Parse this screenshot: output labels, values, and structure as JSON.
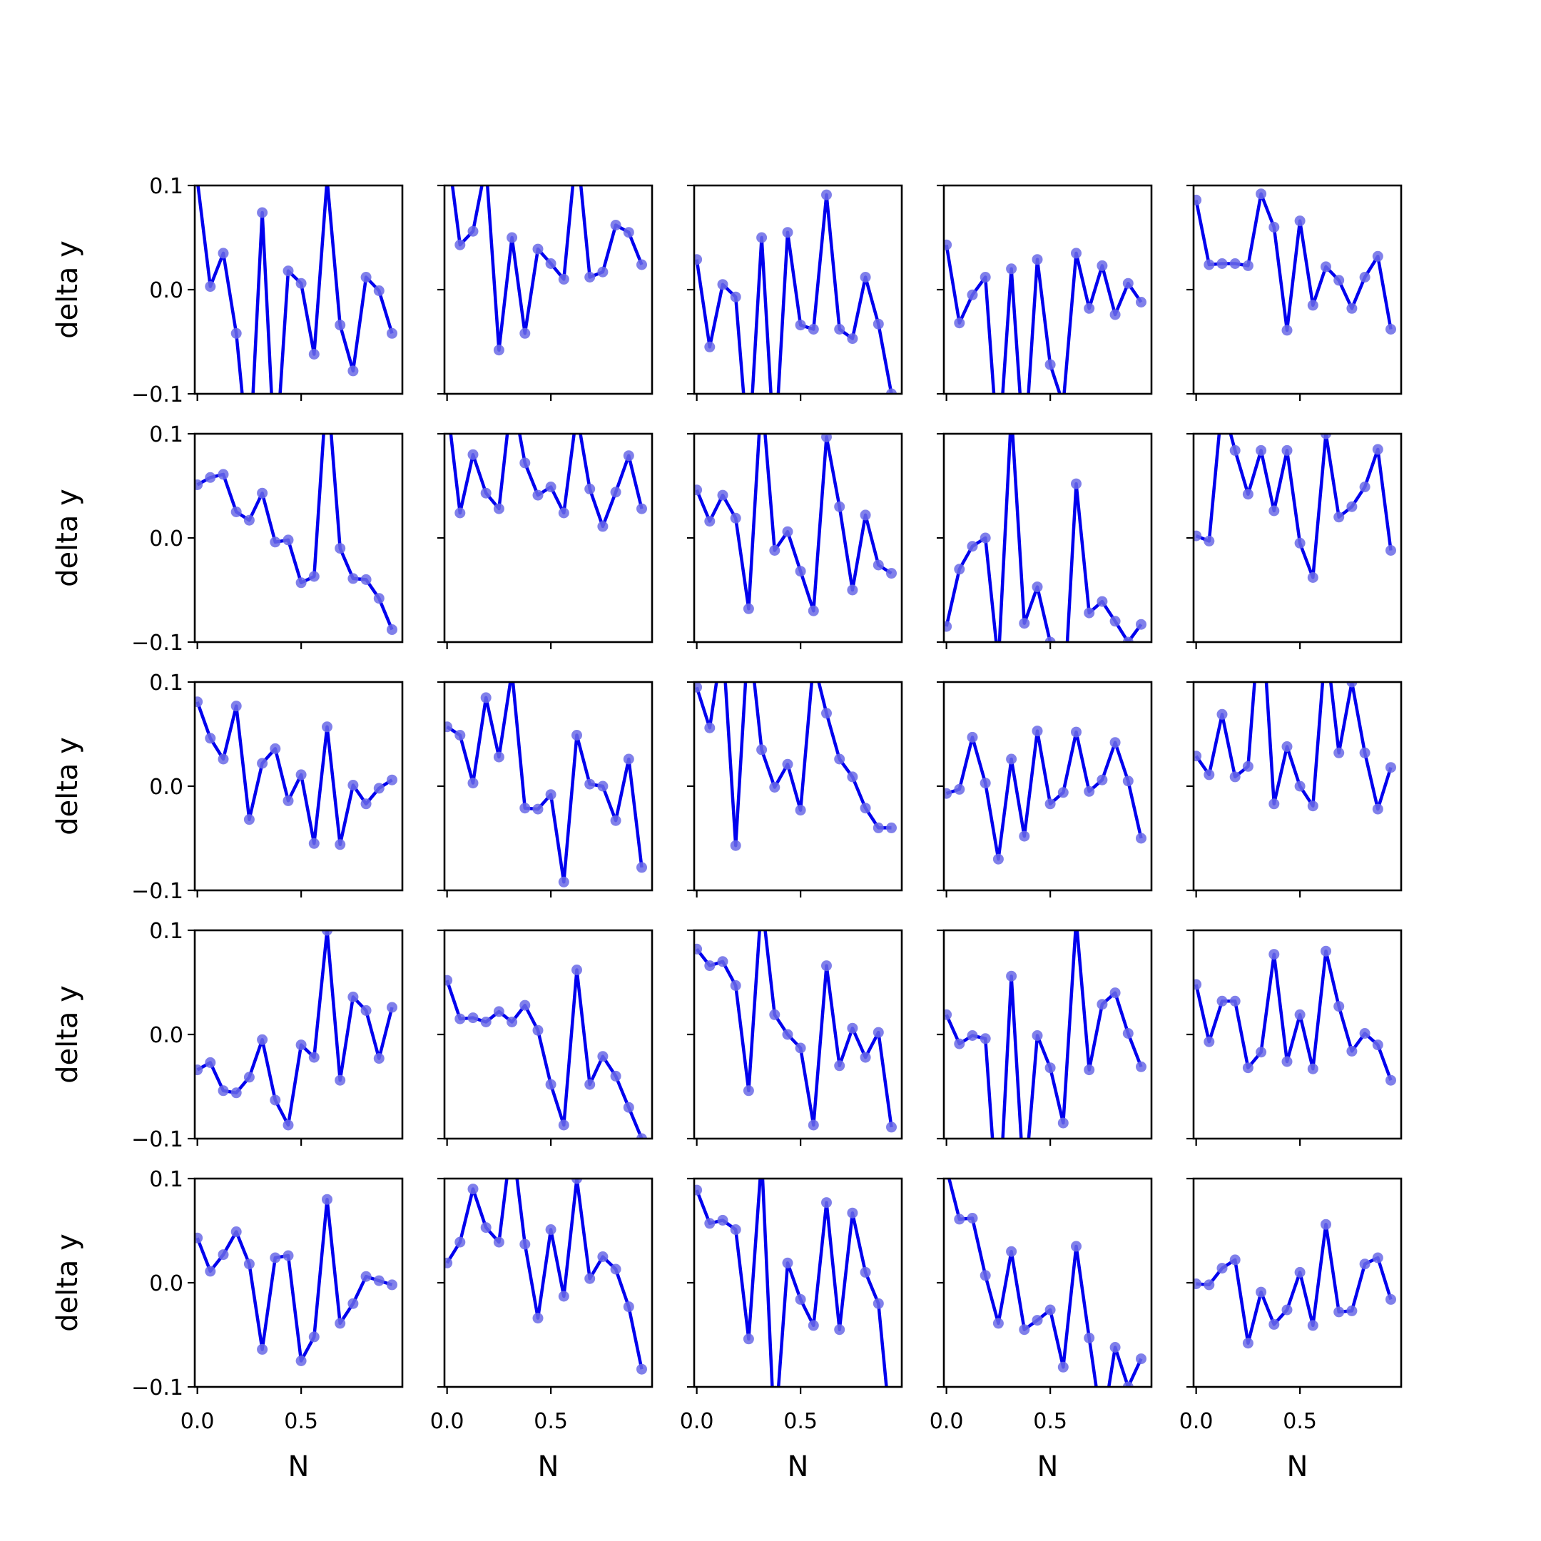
{
  "chart_data": {
    "type": "line",
    "layout": "5x5 grid of small multiples, shared x and y axes",
    "xlabel": "N",
    "ylabel": "delta y",
    "xlim": [
      -0.0125,
      0.9875
    ],
    "ylim": [
      -0.1,
      0.1
    ],
    "x_ticks": [
      "0.0",
      "0.5"
    ],
    "y_ticks": [
      "−0.1",
      "0.0",
      "0.1"
    ],
    "grid": false,
    "line_color": "#0000ee",
    "marker_color": "#6a6ae6",
    "x": [
      0.0,
      0.0625,
      0.125,
      0.1875,
      0.25,
      0.3125,
      0.375,
      0.4375,
      0.5,
      0.5625,
      0.625,
      0.6875,
      0.75,
      0.8125,
      0.875,
      0.9375
    ],
    "panels": [
      {
        "values": [
          0.105,
          0.003,
          0.035,
          -0.042,
          -0.17,
          0.074,
          -0.17,
          0.018,
          0.006,
          -0.062,
          0.106,
          -0.034,
          -0.078,
          0.012,
          -0.001,
          -0.042
        ]
      },
      {
        "values": [
          0.14,
          0.043,
          0.056,
          0.12,
          -0.058,
          0.05,
          -0.042,
          0.039,
          0.025,
          0.01,
          0.14,
          0.012,
          0.017,
          0.062,
          0.055,
          0.024
        ]
      },
      {
        "values": [
          0.029,
          -0.055,
          0.005,
          -0.007,
          -0.16,
          0.05,
          -0.16,
          0.055,
          -0.034,
          -0.038,
          0.091,
          -0.038,
          -0.047,
          0.012,
          -0.033,
          -0.1
        ]
      },
      {
        "values": [
          0.043,
          -0.032,
          -0.005,
          0.012,
          -0.16,
          0.02,
          -0.16,
          0.029,
          -0.072,
          -0.11,
          0.035,
          -0.018,
          0.023,
          -0.024,
          0.006,
          -0.012
        ]
      },
      {
        "values": [
          0.086,
          0.024,
          0.025,
          0.025,
          0.023,
          0.092,
          0.06,
          -0.039,
          0.066,
          -0.015,
          0.022,
          0.009,
          -0.018,
          0.012,
          0.032,
          -0.038
        ]
      },
      {
        "values": [
          0.051,
          0.058,
          0.061,
          0.025,
          0.017,
          0.043,
          -0.004,
          -0.002,
          -0.043,
          -0.037,
          0.15,
          -0.01,
          -0.039,
          -0.04,
          -0.058,
          -0.088
        ]
      },
      {
        "values": [
          0.13,
          0.024,
          0.08,
          0.043,
          0.028,
          0.14,
          0.072,
          0.041,
          0.049,
          0.024,
          0.12,
          0.047,
          0.011,
          0.044,
          0.079,
          0.028
        ]
      },
      {
        "values": [
          0.046,
          0.016,
          0.041,
          0.019,
          -0.068,
          0.14,
          -0.012,
          0.006,
          -0.032,
          -0.07,
          0.097,
          0.03,
          -0.05,
          0.022,
          -0.026,
          -0.034
        ]
      },
      {
        "values": [
          -0.085,
          -0.03,
          -0.008,
          0.0,
          -0.12,
          0.12,
          -0.082,
          -0.047,
          -0.1,
          -0.17,
          0.052,
          -0.072,
          -0.061,
          -0.08,
          -0.1,
          -0.083
        ]
      },
      {
        "values": [
          0.002,
          -0.003,
          0.13,
          0.084,
          0.042,
          0.084,
          0.026,
          0.084,
          -0.005,
          -0.038,
          0.1,
          0.02,
          0.03,
          0.049,
          0.085,
          -0.012
        ]
      },
      {
        "values": [
          0.081,
          0.046,
          0.026,
          0.077,
          -0.032,
          0.022,
          0.036,
          -0.014,
          0.011,
          -0.055,
          0.057,
          -0.056,
          0.001,
          -0.017,
          -0.002,
          0.006
        ]
      },
      {
        "values": [
          0.057,
          0.049,
          0.003,
          0.085,
          0.028,
          0.11,
          -0.021,
          -0.022,
          -0.008,
          -0.092,
          0.049,
          0.002,
          0.0,
          -0.033,
          0.026,
          -0.078
        ]
      },
      {
        "values": [
          0.095,
          0.056,
          0.14,
          -0.057,
          0.15,
          0.035,
          -0.001,
          0.021,
          -0.023,
          0.12,
          0.07,
          0.026,
          0.009,
          -0.021,
          -0.04,
          -0.04
        ]
      },
      {
        "values": [
          -0.007,
          -0.003,
          0.047,
          0.003,
          -0.07,
          0.026,
          -0.048,
          0.053,
          -0.017,
          -0.006,
          0.052,
          -0.005,
          0.006,
          0.042,
          0.005,
          -0.05
        ]
      },
      {
        "values": [
          0.029,
          0.011,
          0.069,
          0.009,
          0.019,
          0.18,
          -0.017,
          0.038,
          0.0,
          -0.019,
          0.14,
          0.032,
          0.1,
          0.032,
          -0.022,
          0.018
        ]
      },
      {
        "values": [
          -0.034,
          -0.027,
          -0.054,
          -0.056,
          -0.041,
          -0.005,
          -0.063,
          -0.087,
          -0.01,
          -0.022,
          0.1,
          -0.044,
          0.036,
          0.023,
          -0.023,
          0.026
        ]
      },
      {
        "values": [
          0.052,
          0.015,
          0.016,
          0.012,
          0.022,
          0.012,
          0.028,
          0.004,
          -0.048,
          -0.087,
          0.062,
          -0.048,
          -0.021,
          -0.04,
          -0.07,
          -0.1
        ]
      },
      {
        "values": [
          0.082,
          0.066,
          0.07,
          0.047,
          -0.054,
          0.13,
          0.019,
          0.0,
          -0.013,
          -0.087,
          0.066,
          -0.03,
          0.006,
          -0.022,
          0.002,
          -0.089
        ]
      },
      {
        "values": [
          0.019,
          -0.009,
          -0.001,
          -0.004,
          -0.18,
          0.056,
          -0.15,
          -0.001,
          -0.032,
          -0.085,
          0.11,
          -0.034,
          0.029,
          0.04,
          0.001,
          -0.031
        ]
      },
      {
        "values": [
          0.048,
          -0.007,
          0.032,
          0.032,
          -0.032,
          -0.017,
          0.077,
          -0.026,
          0.019,
          -0.033,
          0.08,
          0.027,
          -0.016,
          0.001,
          -0.01,
          -0.044
        ]
      },
      {
        "values": [
          0.043,
          0.011,
          0.027,
          0.049,
          0.018,
          -0.064,
          0.024,
          0.026,
          -0.075,
          -0.052,
          0.08,
          -0.039,
          -0.02,
          0.006,
          0.002,
          -0.002
        ]
      },
      {
        "values": [
          0.019,
          0.039,
          0.09,
          0.053,
          0.039,
          0.14,
          0.037,
          -0.034,
          0.051,
          -0.013,
          0.1,
          0.004,
          0.025,
          0.013,
          -0.023,
          -0.083
        ]
      },
      {
        "values": [
          0.089,
          0.057,
          0.06,
          0.051,
          -0.054,
          0.12,
          -0.15,
          0.019,
          -0.016,
          -0.041,
          0.077,
          -0.045,
          0.067,
          0.01,
          -0.02,
          -0.15
        ]
      },
      {
        "values": [
          0.11,
          0.061,
          0.062,
          0.007,
          -0.039,
          0.03,
          -0.045,
          -0.036,
          -0.026,
          -0.081,
          0.035,
          -0.053,
          -0.14,
          -0.062,
          -0.1,
          -0.073
        ]
      },
      {
        "values": [
          -0.001,
          -0.002,
          0.014,
          0.022,
          -0.058,
          -0.009,
          -0.04,
          -0.026,
          0.01,
          -0.041,
          0.056,
          -0.028,
          -0.027,
          0.018,
          0.024,
          -0.016
        ]
      }
    ]
  }
}
